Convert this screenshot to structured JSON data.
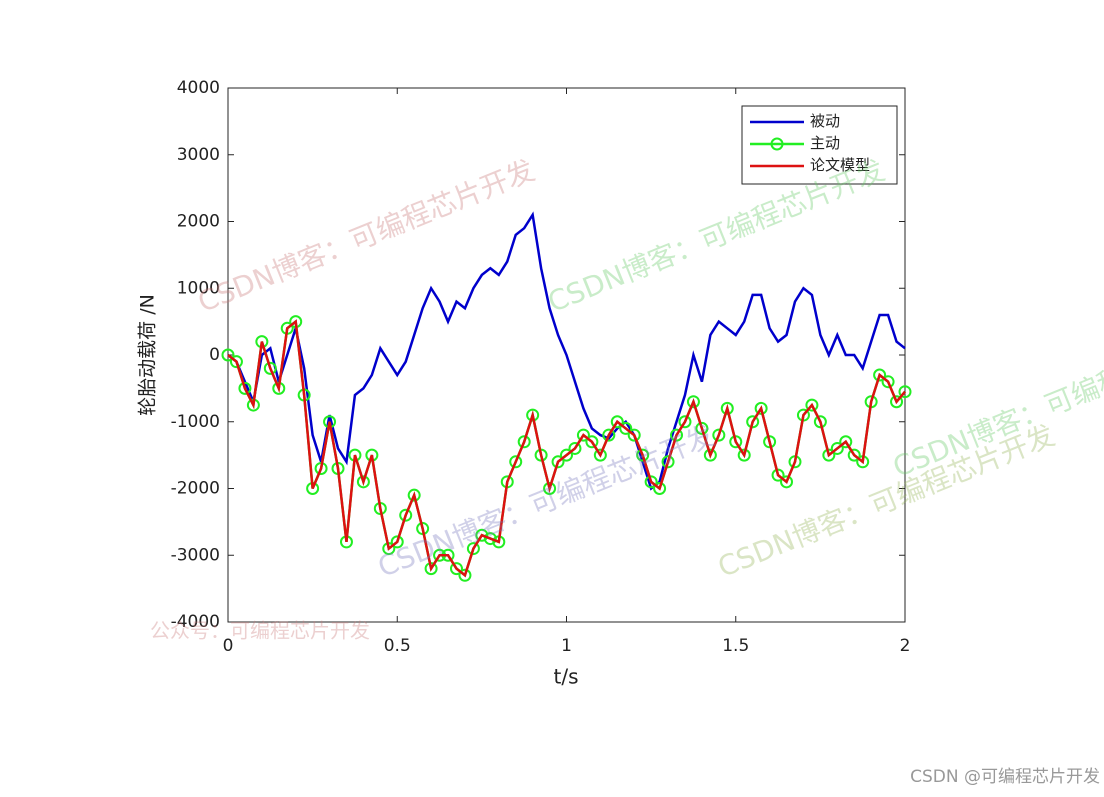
{
  "chart_data": {
    "type": "line",
    "x_label": "t/s",
    "y_label": "轮胎动载荷 /N",
    "xlim": [
      0,
      2
    ],
    "xticks": [
      0,
      0.5,
      1,
      1.5,
      2
    ],
    "ylim": [
      -4000,
      4000
    ],
    "yticks": [
      -4000,
      -3000,
      -2000,
      -1000,
      0,
      1000,
      2000,
      3000,
      4000
    ],
    "legend": "upper right",
    "x": [
      0,
      0.025,
      0.05,
      0.075,
      0.1,
      0.125,
      0.15,
      0.175,
      0.2,
      0.225,
      0.25,
      0.275,
      0.3,
      0.325,
      0.35,
      0.375,
      0.4,
      0.425,
      0.45,
      0.475,
      0.5,
      0.525,
      0.55,
      0.575,
      0.6,
      0.625,
      0.65,
      0.675,
      0.7,
      0.725,
      0.75,
      0.775,
      0.8,
      0.825,
      0.85,
      0.875,
      0.9,
      0.925,
      0.95,
      0.975,
      1,
      1.025,
      1.05,
      1.075,
      1.1,
      1.125,
      1.15,
      1.175,
      1.2,
      1.225,
      1.25,
      1.275,
      1.3,
      1.325,
      1.35,
      1.375,
      1.4,
      1.425,
      1.45,
      1.475,
      1.5,
      1.525,
      1.55,
      1.575,
      1.6,
      1.625,
      1.65,
      1.675,
      1.7,
      1.725,
      1.75,
      1.775,
      1.8,
      1.825,
      1.85,
      1.875,
      1.9,
      1.925,
      1.95,
      1.975,
      2
    ],
    "series": [
      {
        "name": "被动",
        "color": "#0000cc",
        "marker": "none",
        "values": [
          0,
          -100,
          -400,
          -700,
          0,
          100,
          -400,
          0,
          400,
          -200,
          -1200,
          -1600,
          -900,
          -1400,
          -1600,
          -600,
          -500,
          -300,
          100,
          -100,
          -300,
          -100,
          300,
          700,
          1000,
          800,
          500,
          800,
          700,
          1000,
          1200,
          1300,
          1200,
          1400,
          1800,
          1900,
          2100,
          1300,
          700,
          300,
          0,
          -400,
          -800,
          -1100,
          -1200,
          -1250,
          -1100,
          -1000,
          -1200,
          -1600,
          -2000,
          -1900,
          -1400,
          -1000,
          -600,
          0,
          -400,
          300,
          500,
          400,
          300,
          500,
          900,
          900,
          400,
          200,
          300,
          800,
          1000,
          900,
          300,
          0,
          300,
          0,
          0,
          -200,
          200,
          600,
          600,
          200,
          100
        ]
      },
      {
        "name": "主动",
        "color": "#22ee22",
        "marker": "circle",
        "values": [
          0,
          -100,
          -500,
          -750,
          200,
          -200,
          -500,
          400,
          500,
          -600,
          -2000,
          -1700,
          -1000,
          -1700,
          -2800,
          -1500,
          -1900,
          -1500,
          -2300,
          -2900,
          -2800,
          -2400,
          -2100,
          -2600,
          -3200,
          -3000,
          -3000,
          -3200,
          -3300,
          -2900,
          -2700,
          -2750,
          -2800,
          -1900,
          -1600,
          -1300,
          -900,
          -1500,
          -2000,
          -1600,
          -1500,
          -1400,
          -1200,
          -1300,
          -1500,
          -1200,
          -1000,
          -1100,
          -1200,
          -1500,
          -1900,
          -2000,
          -1600,
          -1200,
          -1000,
          -700,
          -1100,
          -1500,
          -1200,
          -800,
          -1300,
          -1500,
          -1000,
          -800,
          -1300,
          -1800,
          -1900,
          -1600,
          -900,
          -750,
          -1000,
          -1500,
          -1400,
          -1300,
          -1500,
          -1600,
          -700,
          -300,
          -400,
          -700,
          -550
        ]
      },
      {
        "name": "论文模型",
        "color": "#dd1111",
        "marker": "none",
        "values": [
          0,
          -100,
          -500,
          -750,
          200,
          -200,
          -500,
          400,
          500,
          -600,
          -2000,
          -1700,
          -1000,
          -1700,
          -2800,
          -1500,
          -1900,
          -1500,
          -2300,
          -2900,
          -2800,
          -2400,
          -2100,
          -2600,
          -3200,
          -3000,
          -3000,
          -3200,
          -3300,
          -2900,
          -2700,
          -2750,
          -2800,
          -1900,
          -1600,
          -1300,
          -900,
          -1500,
          -2000,
          -1600,
          -1500,
          -1400,
          -1200,
          -1300,
          -1500,
          -1200,
          -1000,
          -1100,
          -1200,
          -1500,
          -1900,
          -2000,
          -1600,
          -1200,
          -1000,
          -700,
          -1100,
          -1500,
          -1200,
          -800,
          -1300,
          -1500,
          -1000,
          -800,
          -1300,
          -1800,
          -1900,
          -1600,
          -900,
          -750,
          -1000,
          -1500,
          -1400,
          -1300,
          -1500,
          -1600,
          -700,
          -300,
          -400,
          -700,
          -550
        ]
      }
    ],
    "watermarks": [
      "CSDN博客：可编程芯片开发",
      "CSDN博客：可编程芯片开发",
      "CSDN博客：可编程芯片开发",
      "CSDN博客：可编程芯片开发",
      "CSDN博客：可编程芯片开发",
      "公众号：可编程芯片开发",
      "CSDN @可编程芯片开发"
    ]
  }
}
